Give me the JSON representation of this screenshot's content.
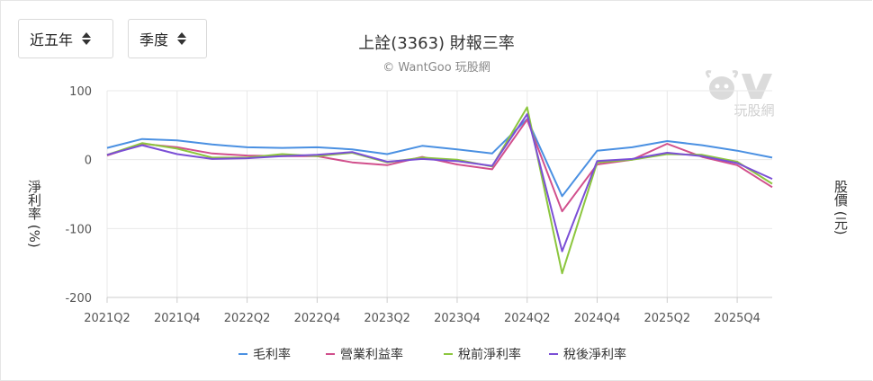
{
  "controls": {
    "range_select": "近五年",
    "period_select": "季度"
  },
  "header": {
    "title": "上詮(3363) 財報三率",
    "subtitle": "© WantGoo 玩股網"
  },
  "watermark_text": "玩股網",
  "colors": {
    "gross": "#4A90E2",
    "operating": "#D14F8C",
    "pretax": "#8CC63E",
    "net": "#7B4FD6",
    "grid": "#e8e8e8",
    "axis": "#cccccc"
  },
  "chart_data": {
    "type": "line",
    "title": "上詮(3363) 財報三率",
    "ylabel": "淨利率 (%)",
    "y2label": "股價 (元)",
    "ylim": [
      -200,
      100
    ],
    "yticks": [
      100,
      0,
      -100,
      -200
    ],
    "categories": [
      "2021Q2",
      "2021Q3",
      "2021Q4",
      "2022Q1",
      "2022Q2",
      "2022Q3",
      "2022Q4",
      "2023Q1",
      "2023Q2",
      "2023Q3",
      "2023Q4",
      "2024Q1",
      "2024Q2",
      "2024Q3",
      "2024Q4",
      "2025Q1",
      "2025Q2",
      "2025Q3",
      "2025Q4",
      "2026Q1"
    ],
    "xtick_labels": [
      "2021Q2",
      "2021Q4",
      "2022Q2",
      "2022Q4",
      "2023Q2",
      "2023Q4",
      "2024Q2",
      "2024Q4",
      "2025Q2",
      "2025Q4"
    ],
    "legend_position": "bottom",
    "series": [
      {
        "name": "毛利率",
        "color_key": "gross",
        "values": [
          17,
          30,
          28,
          22,
          18,
          17,
          18,
          15,
          8,
          20,
          15,
          9,
          59,
          -53,
          13,
          18,
          27,
          21,
          13,
          3
        ]
      },
      {
        "name": "營業利益率",
        "color_key": "operating",
        "values": [
          6,
          23,
          18,
          9,
          6,
          5,
          5,
          -4,
          -8,
          4,
          -7,
          -14,
          58,
          -75,
          -7,
          0,
          23,
          4,
          -8,
          -40
        ]
      },
      {
        "name": "稅前淨利率",
        "color_key": "pretax",
        "values": [
          7,
          24,
          16,
          3,
          3,
          8,
          5,
          10,
          -4,
          3,
          0,
          -10,
          76,
          -165,
          -4,
          0,
          8,
          7,
          -3,
          -35
        ]
      },
      {
        "name": "稅後淨利率",
        "color_key": "net",
        "values": [
          7,
          21,
          8,
          1,
          2,
          5,
          7,
          11,
          -3,
          1,
          -2,
          -9,
          66,
          -133,
          -2,
          1,
          10,
          5,
          -5,
          -28
        ]
      }
    ]
  }
}
